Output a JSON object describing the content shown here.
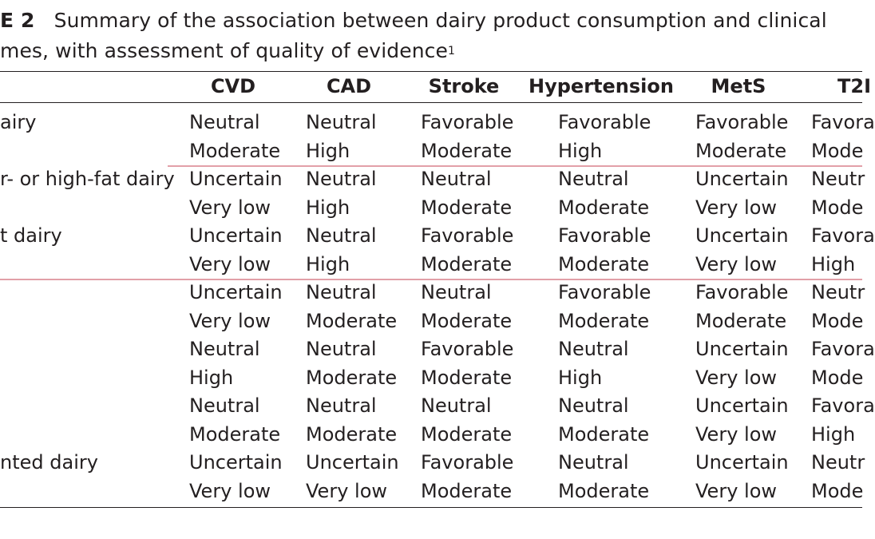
{
  "caption": {
    "label": "E 2",
    "line1": "Summary of the association between dairy product consumption and clinical",
    "line2": "mes, with assessment of quality of evidence",
    "footnote_mark": "1"
  },
  "table": {
    "headers": [
      "CVD",
      "CAD",
      "Stroke",
      "Hypertension",
      "MetS",
      "T2I"
    ],
    "rows": [
      {
        "label": "airy",
        "effect": [
          "Neutral",
          "Neutral",
          "Favorable",
          "Favorable",
          "Favorable",
          "Favora"
        ],
        "quality": [
          "Moderate",
          "High",
          "Moderate",
          "High",
          "Moderate",
          "Mode"
        ]
      },
      {
        "label": "r- or high-fat dairy",
        "effect": [
          "Uncertain",
          "Neutral",
          "Neutral",
          "Neutral",
          "Uncertain",
          "Neutr"
        ],
        "quality": [
          "Very low",
          "High",
          "Moderate",
          "Moderate",
          "Very low",
          "Mode"
        ]
      },
      {
        "label": "t dairy",
        "effect": [
          "Uncertain",
          "Neutral",
          "Favorable",
          "Favorable",
          "Uncertain",
          "Favora"
        ],
        "quality": [
          "Very low",
          "High",
          "Moderate",
          "Moderate",
          "Very low",
          "High"
        ]
      },
      {
        "label": "",
        "effect": [
          "Uncertain",
          "Neutral",
          "Neutral",
          "Favorable",
          "Favorable",
          "Neutr"
        ],
        "quality": [
          "Very low",
          "Moderate",
          "Moderate",
          "Moderate",
          "Moderate",
          "Mode"
        ]
      },
      {
        "label": "",
        "effect": [
          "Neutral",
          "Neutral",
          "Favorable",
          "Neutral",
          "Uncertain",
          "Favora"
        ],
        "quality": [
          "High",
          "Moderate",
          "Moderate",
          "High",
          "Very low",
          "Mode"
        ]
      },
      {
        "label": "",
        "effect": [
          "Neutral",
          "Neutral",
          "Neutral",
          "Neutral",
          "Uncertain",
          "Favora"
        ],
        "quality": [
          "Moderate",
          "Moderate",
          "Moderate",
          "Moderate",
          "Very low",
          "High"
        ]
      },
      {
        "label": "nted dairy",
        "effect": [
          "Uncertain",
          "Uncertain",
          "Favorable",
          "Neutral",
          "Uncertain",
          "Neutr"
        ],
        "quality": [
          "Very low",
          "Very low",
          "Moderate",
          "Moderate",
          "Very low",
          "Mode"
        ]
      }
    ]
  }
}
